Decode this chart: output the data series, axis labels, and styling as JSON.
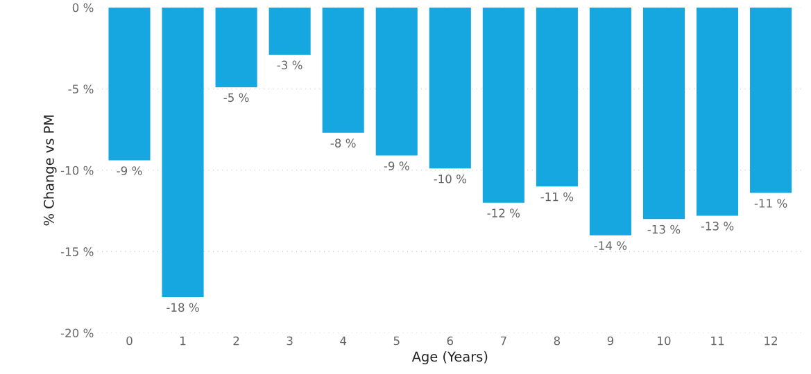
{
  "chart_data": {
    "type": "bar",
    "xlabel": "Age (Years)",
    "ylabel": "% Change vs PM",
    "categories": [
      "0",
      "1",
      "2",
      "3",
      "4",
      "5",
      "6",
      "7",
      "8",
      "9",
      "10",
      "11",
      "12"
    ],
    "values": [
      -9.4,
      -17.8,
      -4.9,
      -2.9,
      -7.7,
      -9.1,
      -9.9,
      -12.0,
      -11.0,
      -14.0,
      -13.0,
      -12.8,
      -11.4
    ],
    "value_labels": [
      "-9 %",
      "-18 %",
      "-5 %",
      "-3 %",
      "-8 %",
      "-9 %",
      "-10 %",
      "-12 %",
      "-11 %",
      "-14 %",
      "-13 %",
      "-13 %",
      "-11 %"
    ],
    "color": "#16a7e0",
    "ylim": [
      -20,
      0
    ],
    "yticks": [
      {
        "value": -20,
        "label": "-20 %"
      },
      {
        "value": -15,
        "label": "-15 %"
      },
      {
        "value": -10,
        "label": "-10 %"
      },
      {
        "value": -5,
        "label": "-5 %"
      },
      {
        "value": 0,
        "label": "0 %"
      }
    ],
    "grid": "y"
  }
}
